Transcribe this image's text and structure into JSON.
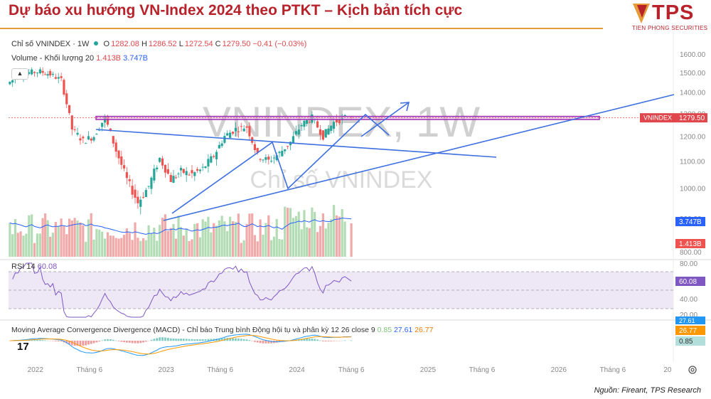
{
  "header": {
    "title": "Dự báo xu hướng VN-Index 2024 theo PTKT – Kịch bản tích cực",
    "logo_text": "TPS",
    "logo_sub": "TIEN PHONG SECURITIES"
  },
  "source": "Nguồn: Fireant, TPS Research",
  "legend": {
    "symbol": "Chỉ số VNINDEX · 1W",
    "o_label": "O",
    "o": "1282.08",
    "h_label": "H",
    "h": "1286.52",
    "l_label": "L",
    "l": "1272.54",
    "c_label": "C",
    "c": "1279.50",
    "change": "−0.41 (−0.03%)",
    "volume_label": "Volume - Khối lượng 20",
    "volume_value": "1.413B",
    "volume_ma": "3.747B",
    "collapse_icon": "chevron-up-icon",
    "rsi_label": "RSI 14",
    "rsi_value": "60.08",
    "macd_label": "Moving Average Convergence Divergence (MACD) - Chỉ báo Trung bình Động hội tụ và phân kỳ 12 26 close 9",
    "macd_hist": "0.85",
    "macd_line": "27.61",
    "macd_signal": "26.77"
  },
  "watermark": {
    "big": "VNINDEX, 1W",
    "small": "Chỉ số VNINDEX"
  },
  "price_axis": {
    "ticks": [
      "1600.00",
      "1500.00",
      "1400.00",
      "1300.00",
      "1200.00",
      "1100.00",
      "1000.00",
      "900.00",
      "800.00"
    ],
    "price_tag_label": "VNINDEX",
    "price_tag_value": "1279.50",
    "volume_ma_tag": "3.747B",
    "volume_tag": "1.413B"
  },
  "rsi_axis": {
    "ticks": [
      "80.00",
      "60.08",
      "40.00",
      "20.00"
    ],
    "current": "60.08"
  },
  "macd_axis": {
    "tag_line": "27.61",
    "tag_signal": "26.77",
    "tag_hist": "0.85"
  },
  "time_axis": [
    "2022",
    "Tháng 6",
    "2023",
    "Tháng 6",
    "2024",
    "Tháng 6",
    "2025",
    "Tháng 6",
    "2026",
    "Tháng 6",
    "20"
  ],
  "settings_icon": "gear-icon",
  "tv_logo_icon": "tradingview-logo-icon",
  "colors": {
    "title": "#b8222b",
    "up": "#26a69a",
    "down": "#ef5350",
    "trendline": "#3d6fe0",
    "zone": "#9c27b0",
    "rsi": "#7e57c2",
    "vol_ma": "#2962ff",
    "macd": "#2196f3",
    "signal": "#ff9800"
  },
  "chart_data": {
    "type": "candlestick",
    "timeframe": "1W",
    "ylim": [
      800,
      1650
    ],
    "y_scale": "log",
    "x_range": [
      "2021-11",
      "2026-12"
    ],
    "ohlc_sampled": [
      {
        "date": "2021-11",
        "close": 1440
      },
      {
        "date": "2021-12",
        "close": 1480
      },
      {
        "date": "2022-01",
        "close": 1500
      },
      {
        "date": "2022-02",
        "close": 1505
      },
      {
        "date": "2022-03",
        "close": 1490
      },
      {
        "date": "2022-04",
        "close": 1460
      },
      {
        "date": "2022-05",
        "close": 1230
      },
      {
        "date": "2022-06",
        "close": 1180
      },
      {
        "date": "2022-07",
        "close": 1200
      },
      {
        "date": "2022-08",
        "close": 1280
      },
      {
        "date": "2022-09",
        "close": 1140
      },
      {
        "date": "2022-10",
        "close": 1030
      },
      {
        "date": "2022-11",
        "close": 950
      },
      {
        "date": "2022-12",
        "close": 1007
      },
      {
        "date": "2023-01",
        "close": 1110
      },
      {
        "date": "2023-02",
        "close": 1030
      },
      {
        "date": "2023-03",
        "close": 1060
      },
      {
        "date": "2023-04",
        "close": 1050
      },
      {
        "date": "2023-05",
        "close": 1070
      },
      {
        "date": "2023-06",
        "close": 1120
      },
      {
        "date": "2023-07",
        "close": 1200
      },
      {
        "date": "2023-08",
        "close": 1230
      },
      {
        "date": "2023-09",
        "close": 1240
      },
      {
        "date": "2023-10",
        "close": 1120
      },
      {
        "date": "2023-11",
        "close": 1100
      },
      {
        "date": "2023-12",
        "close": 1130
      },
      {
        "date": "2024-01",
        "close": 1175
      },
      {
        "date": "2024-02",
        "close": 1250
      },
      {
        "date": "2024-03",
        "close": 1280
      },
      {
        "date": "2024-04",
        "close": 1200
      },
      {
        "date": "2024-05",
        "close": 1260
      },
      {
        "date": "2024-06",
        "close": 1279.5
      }
    ],
    "last": {
      "open": 1282.08,
      "high": 1286.52,
      "low": 1272.54,
      "close": 1279.5,
      "change": -0.41,
      "change_pct": -0.03
    },
    "resistance_zone": [
      1272,
      1286
    ],
    "volume": {
      "last": "1.413B",
      "ma20": "3.747B"
    },
    "rsi": {
      "period": 14,
      "last": 60.08,
      "bands": [
        70,
        50,
        30
      ]
    },
    "macd": {
      "fast": 12,
      "slow": 26,
      "signal": 9,
      "hist": 0.85,
      "macd": 27.61,
      "signal_value": 26.77
    }
  }
}
